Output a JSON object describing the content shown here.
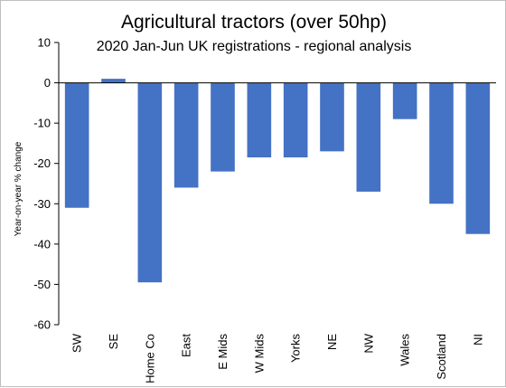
{
  "chart_data": {
    "type": "bar",
    "title": "Agricultural tractors (over 50hp)",
    "subtitle": "2020 Jan-Jun UK registrations - regional analysis",
    "xlabel": "",
    "ylabel": "Year-on-year  % change",
    "ylim": [
      -60,
      10
    ],
    "yticks": [
      "10",
      "0",
      "-10",
      "-20",
      "-30",
      "-40",
      "-50",
      "-60"
    ],
    "grid": false,
    "legend": "none",
    "categories": [
      "SW",
      "SE",
      "Home Co",
      "East",
      "E Mids",
      "W Mids",
      "Yorks",
      "NE",
      "NW",
      "Wales",
      "Scotland",
      "NI"
    ],
    "values": [
      -31,
      1,
      -49.5,
      -26,
      -22,
      -18.5,
      -18.5,
      -17,
      -27,
      -9,
      -30,
      -37.5
    ],
    "colors": {
      "bar": "#4472c4",
      "axis": "#000000"
    }
  }
}
